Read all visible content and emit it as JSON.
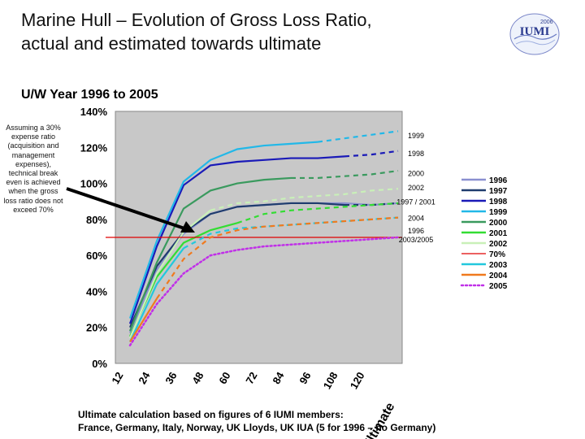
{
  "header": {
    "title_line1": "Marine Hull – Evolution of Gross Loss Ratio,",
    "title_line2": "actual and estimated towards ultimate",
    "logo_text": "IUMI",
    "logo_year": "2006"
  },
  "subtitle": "U/W Year 1996 to 2005",
  "note": "Assuming a 30% expense ratio (acquisition and management expenses), technical break even is achieved when the gross loss ratio does not exceed 70%",
  "footer": {
    "line1": "Ultimate calculation based on figures of 6 IUMI members:",
    "line2": "France, Germany, Italy, Norway, UK Lloyds, UK IUA (5 for 1996 – no Germany)"
  },
  "chart_data": {
    "type": "line",
    "categories": [
      "12",
      "24",
      "36",
      "48",
      "60",
      "72",
      "84",
      "96",
      "108",
      "120",
      "Ultimate"
    ],
    "ylim": [
      0,
      140
    ],
    "yticks": [
      0,
      20,
      40,
      60,
      80,
      100,
      120,
      140
    ],
    "y_tick_labels": [
      "0%",
      "20%",
      "40%",
      "60%",
      "80%",
      "100%",
      "120%",
      "140%"
    ],
    "grid": false,
    "legend_position": "right",
    "series": [
      {
        "name": "1996",
        "color": "#8a8fd0",
        "style": "solid",
        "values": [
          17,
          52,
          72,
          83,
          87,
          88,
          89,
          89,
          89,
          88,
          89
        ],
        "estimated_from": 99
      },
      {
        "name": "1997",
        "color": "#1f3c6e",
        "style": "solid+dash",
        "values": [
          20,
          54,
          73,
          83,
          87,
          88,
          89,
          89,
          88,
          88,
          89
        ],
        "estimated_from": 8
      },
      {
        "name": "1998",
        "color": "#1a1ab8",
        "style": "solid+dash",
        "values": [
          22,
          65,
          99,
          110,
          112,
          113,
          114,
          114,
          115,
          116,
          118
        ],
        "estimated_from": 8
      },
      {
        "name": "1999",
        "color": "#22b8e8",
        "style": "solid+dash",
        "values": [
          25,
          68,
          101,
          113,
          119,
          121,
          122,
          123,
          125,
          127,
          129
        ],
        "estimated_from": 7
      },
      {
        "name": "2000",
        "color": "#3a9a5e",
        "style": "solid+dash",
        "values": [
          18,
          56,
          86,
          96,
          100,
          102,
          103,
          103,
          104,
          105,
          107
        ],
        "estimated_from": 6
      },
      {
        "name": "2001",
        "color": "#33dd33",
        "style": "solid+dash",
        "values": [
          15,
          48,
          67,
          74,
          78,
          83,
          85,
          86,
          87,
          88,
          89
        ],
        "estimated_from": 4
      },
      {
        "name": "2002",
        "color": "#c9f0b8",
        "style": "solid+dash",
        "values": [
          14,
          50,
          73,
          85,
          89,
          90,
          92,
          93,
          94,
          96,
          97
        ],
        "estimated_from": 3
      },
      {
        "name": "70%",
        "color": "#e00000",
        "style": "solid",
        "values": [
          70,
          70,
          70,
          70,
          70,
          70,
          70,
          70,
          70,
          70,
          70
        ],
        "estimated_from": 99
      },
      {
        "name": "2003",
        "color": "#22c8dd",
        "style": "solid+dash",
        "values": [
          12,
          44,
          64,
          72,
          75,
          76,
          77,
          78,
          79,
          80,
          81
        ],
        "estimated_from": 2
      },
      {
        "name": "2004",
        "color": "#f07a1e",
        "style": "solid+dash",
        "values": [
          12,
          36,
          58,
          70,
          74,
          76,
          77,
          78,
          79,
          80,
          81
        ],
        "estimated_from": 1
      },
      {
        "name": "2005",
        "color": "#c030e8",
        "style": "dotted",
        "values": [
          10,
          33,
          50,
          60,
          63,
          65,
          66,
          67,
          68,
          69,
          70
        ],
        "estimated_from": 0
      }
    ],
    "end_labels": [
      {
        "text": "1999",
        "y": 127
      },
      {
        "text": "1998",
        "y": 117
      },
      {
        "text": "2000",
        "y": 106
      },
      {
        "text": "2002",
        "y": 98
      },
      {
        "text": "1997 / 2001",
        "y": 90
      },
      {
        "text": "2004",
        "y": 81
      },
      {
        "text": "1996",
        "y": 74
      },
      {
        "text": "2003/2005",
        "y": 69
      }
    ]
  }
}
